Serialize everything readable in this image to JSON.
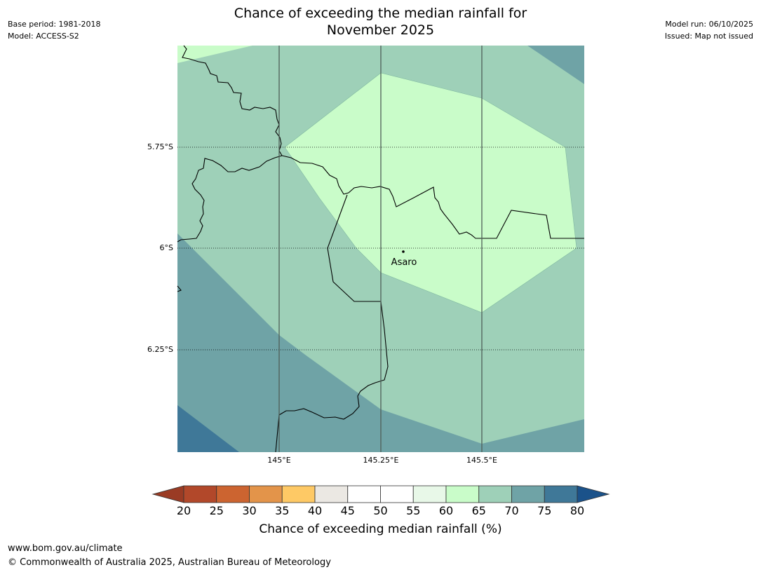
{
  "header": {
    "title_line1": "Chance of exceeding the median rainfall for",
    "title_line2": "November 2025",
    "base_period": "Base period: 1981-2018",
    "model": "Model: ACCESS-S2",
    "model_run": "Model run: 06/10/2025",
    "issued": "Issued: Map not issued"
  },
  "map": {
    "lat_labels": [
      "5.75°S",
      "6°S",
      "6.25°S"
    ],
    "lon_labels": [
      "145°E",
      "145.25°E",
      "145.5°E"
    ],
    "place_name": "Asaro",
    "zone_colors": {
      "60-65": "#c9fcc9",
      "65-70": "#9ed0b8",
      "70-75": "#6fa3a6",
      "75-80": "#3f7898"
    }
  },
  "colorbar": {
    "ticks": [
      "20",
      "25",
      "30",
      "35",
      "40",
      "45",
      "50",
      "55",
      "60",
      "65",
      "70",
      "75",
      "80"
    ],
    "colors": [
      "#b2482a",
      "#cc6430",
      "#e3944a",
      "#fec965",
      "#ebe8e3",
      "#ffffff",
      "#ffffff",
      "#e8f8e8",
      "#c9fcc9",
      "#9ed0b8",
      "#6fa3a6",
      "#3f7898"
    ],
    "under_color": "#9a3b24",
    "over_color": "#1b528a",
    "label": "Chance of exceeding median rainfall (%)"
  },
  "footer": {
    "url": "www.bom.gov.au/climate",
    "copyright": "© Commonwealth of Australia 2025, Australian Bureau of Meteorology"
  }
}
